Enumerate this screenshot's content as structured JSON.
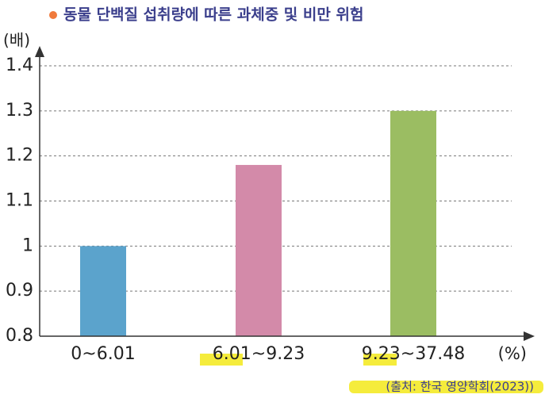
{
  "chart_data": {
    "type": "bar",
    "title": "동물 단백질 섭취량에 따른 과체중 및 비만 위험",
    "y_label": "(배)",
    "x_label": "(%)",
    "source": "(출처: 한국 영양학회(2023))",
    "categories": [
      "0~6.01",
      "6.01~9.23",
      "9.23~37.48"
    ],
    "values": [
      1.0,
      1.18,
      1.3
    ],
    "colors": [
      "#5ba3cc",
      "#d38aa9",
      "#9bbd62"
    ],
    "ylim": [
      0.8,
      1.4
    ],
    "yticks": [
      0.8,
      0.9,
      1,
      1.1,
      1.2,
      1.3,
      1.4
    ],
    "grid": true
  }
}
